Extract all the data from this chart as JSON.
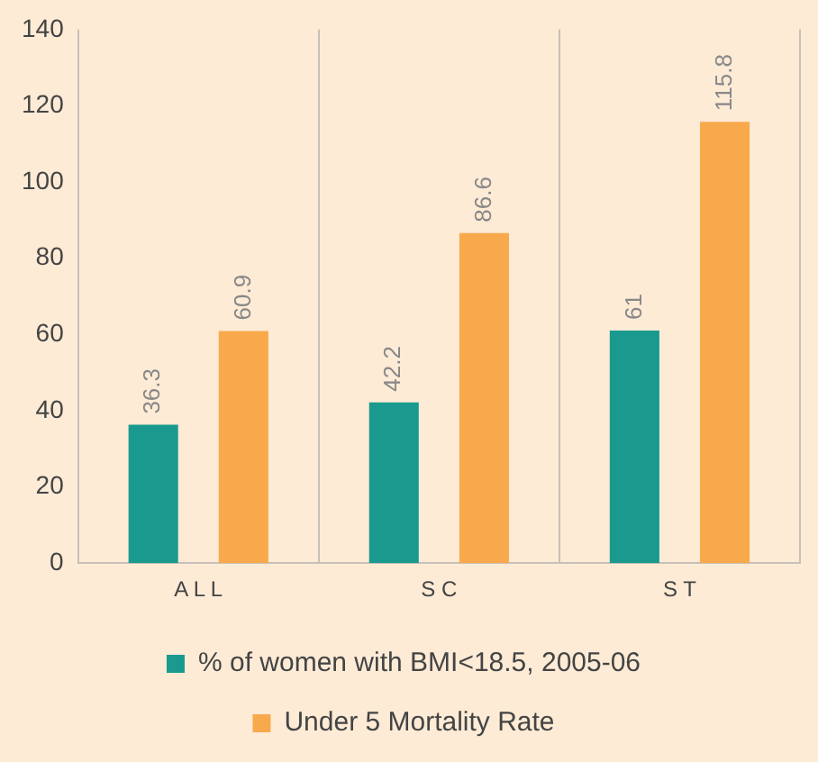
{
  "chart_data": {
    "type": "bar",
    "categories": [
      "A L L",
      "S C",
      "S T"
    ],
    "series": [
      {
        "name": "% of women with BMI<18.5, 2005-06",
        "color": "#1a9a8e",
        "values": [
          36.3,
          42.2,
          61
        ]
      },
      {
        "name": "Under 5 Mortality Rate",
        "color": "#f8a94c",
        "values": [
          60.9,
          86.6,
          115.8
        ]
      }
    ],
    "ylim": [
      0,
      140
    ],
    "yticks": [
      0,
      20,
      40,
      60,
      80,
      100,
      120,
      140
    ],
    "grid": "x",
    "legend": "bottom",
    "data_labels": true
  }
}
